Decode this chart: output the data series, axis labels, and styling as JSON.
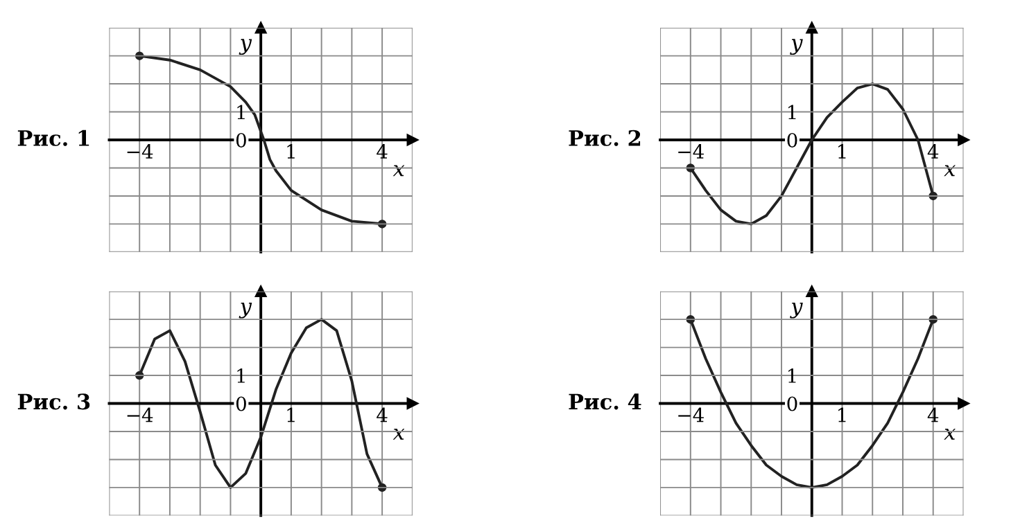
{
  "chart_data": [
    {
      "type": "line",
      "title": "Рис. 1",
      "xlabel": "x",
      "ylabel": "y",
      "xlim": [
        -5,
        5
      ],
      "ylim": [
        -4,
        4
      ],
      "xticks": [
        {
          "value": -5,
          "label": null
        },
        {
          "value": -4,
          "label": "−4"
        },
        {
          "value": -3,
          "label": null
        },
        {
          "value": -2,
          "label": null
        },
        {
          "value": -1,
          "label": null
        },
        {
          "value": 0,
          "label": null
        },
        1,
        {
          "value": 2,
          "label": null
        },
        {
          "value": 3,
          "label": null
        },
        4,
        {
          "value": 5,
          "label": null
        }
      ],
      "yticks": [
        {
          "value": -4,
          "label": null
        },
        {
          "value": -3,
          "label": null
        },
        {
          "value": -2,
          "label": null
        },
        {
          "value": -1,
          "label": null
        },
        0,
        1,
        {
          "value": 2,
          "label": null
        },
        {
          "value": 3,
          "label": null
        },
        {
          "value": 4,
          "label": null
        }
      ],
      "grid": true,
      "series": [
        {
          "color": "#222222",
          "x": [
            -4,
            -3,
            -2,
            -1,
            -0.5,
            -0.2,
            0,
            0.1,
            0.3,
            0.5,
            1,
            2,
            3,
            4
          ],
          "values": [
            3,
            2.85,
            2.5,
            1.9,
            1.35,
            0.9,
            0.3,
            0,
            -0.7,
            -1.1,
            -1.8,
            -2.5,
            -2.9,
            -3
          ]
        }
      ]
    },
    {
      "type": "line",
      "title": "Рис. 2",
      "xlabel": "x",
      "ylabel": "y",
      "xlim": [
        -5,
        5
      ],
      "ylim": [
        -4,
        4
      ],
      "xticks": [
        {
          "value": -5,
          "label": null
        },
        {
          "value": -4,
          "label": "−4"
        },
        {
          "value": -3,
          "label": null
        },
        {
          "value": -2,
          "label": null
        },
        {
          "value": -1,
          "label": null
        },
        {
          "value": 0,
          "label": null
        },
        1,
        {
          "value": 2,
          "label": null
        },
        {
          "value": 3,
          "label": null
        },
        4,
        {
          "value": 5,
          "label": null
        }
      ],
      "yticks": [
        {
          "value": -4,
          "label": null
        },
        {
          "value": -3,
          "label": null
        },
        {
          "value": -2,
          "label": null
        },
        {
          "value": -1,
          "label": null
        },
        0,
        1,
        {
          "value": 2,
          "label": null
        },
        {
          "value": 3,
          "label": null
        },
        {
          "value": 4,
          "label": null
        }
      ],
      "grid": true,
      "series": [
        {
          "color": "#222222",
          "x": [
            -4,
            -3.5,
            -3,
            -2.5,
            -2,
            -1.5,
            -1,
            -0.5,
            0,
            0.5,
            1,
            1.5,
            2,
            2.5,
            3,
            3.5,
            4
          ],
          "values": [
            -1,
            -1.8,
            -2.5,
            -2.9,
            -3,
            -2.7,
            -2,
            -1,
            0,
            0.8,
            1.35,
            1.85,
            2,
            1.8,
            1.1,
            0,
            -2
          ]
        }
      ]
    },
    {
      "type": "line",
      "title": "Рис. 3",
      "xlabel": "x",
      "ylabel": "y",
      "xlim": [
        -5,
        5
      ],
      "ylim": [
        -4,
        4
      ],
      "xticks": [
        {
          "value": -5,
          "label": null
        },
        {
          "value": -4,
          "label": "−4"
        },
        {
          "value": -3,
          "label": null
        },
        {
          "value": -2,
          "label": null
        },
        {
          "value": -1,
          "label": null
        },
        {
          "value": 0,
          "label": null
        },
        1,
        {
          "value": 2,
          "label": null
        },
        {
          "value": 3,
          "label": null
        },
        4,
        {
          "value": 5,
          "label": null
        }
      ],
      "yticks": [
        {
          "value": -4,
          "label": null
        },
        {
          "value": -3,
          "label": null
        },
        {
          "value": -2,
          "label": null
        },
        {
          "value": -1,
          "label": null
        },
        0,
        1,
        {
          "value": 2,
          "label": null
        },
        {
          "value": 3,
          "label": null
        },
        {
          "value": 4,
          "label": null
        }
      ],
      "grid": true,
      "series": [
        {
          "color": "#222222",
          "x": [
            -4,
            -3.5,
            -3,
            -2.5,
            -2,
            -1.5,
            -1,
            -0.5,
            0,
            0.5,
            1,
            1.5,
            2,
            2.5,
            3,
            3.5,
            4
          ],
          "values": [
            1,
            2.3,
            2.6,
            1.5,
            -0.3,
            -2.2,
            -3,
            -2.5,
            -1.2,
            0.5,
            1.8,
            2.7,
            3,
            2.6,
            0.8,
            -1.8,
            -3
          ]
        }
      ]
    },
    {
      "type": "line",
      "title": "Рис. 4",
      "xlabel": "x",
      "ylabel": "y",
      "xlim": [
        -5,
        5
      ],
      "ylim": [
        -4,
        4
      ],
      "xticks": [
        {
          "value": -5,
          "label": null
        },
        {
          "value": -4,
          "label": "−4"
        },
        {
          "value": -3,
          "label": null
        },
        {
          "value": -2,
          "label": null
        },
        {
          "value": -1,
          "label": null
        },
        {
          "value": 0,
          "label": null
        },
        1,
        {
          "value": 2,
          "label": null
        },
        {
          "value": 3,
          "label": null
        },
        4,
        {
          "value": 5,
          "label": null
        }
      ],
      "yticks": [
        {
          "value": -4,
          "label": null
        },
        {
          "value": -3,
          "label": null
        },
        {
          "value": -2,
          "label": null
        },
        {
          "value": -1,
          "label": null
        },
        0,
        1,
        {
          "value": 2,
          "label": null
        },
        {
          "value": 3,
          "label": null
        },
        {
          "value": 4,
          "label": null
        }
      ],
      "grid": true,
      "series": [
        {
          "color": "#222222",
          "x": [
            -4,
            -3.5,
            -3,
            -2.5,
            -2,
            -1.5,
            -1,
            -0.5,
            0,
            0.5,
            1,
            1.5,
            2,
            2.5,
            3,
            3.5,
            4
          ],
          "values": [
            3,
            1.6,
            0.4,
            -0.7,
            -1.5,
            -2.2,
            -2.6,
            -2.9,
            -3,
            -2.9,
            -2.6,
            -2.2,
            -1.5,
            -0.7,
            0.4,
            1.6,
            3
          ]
        }
      ]
    }
  ]
}
